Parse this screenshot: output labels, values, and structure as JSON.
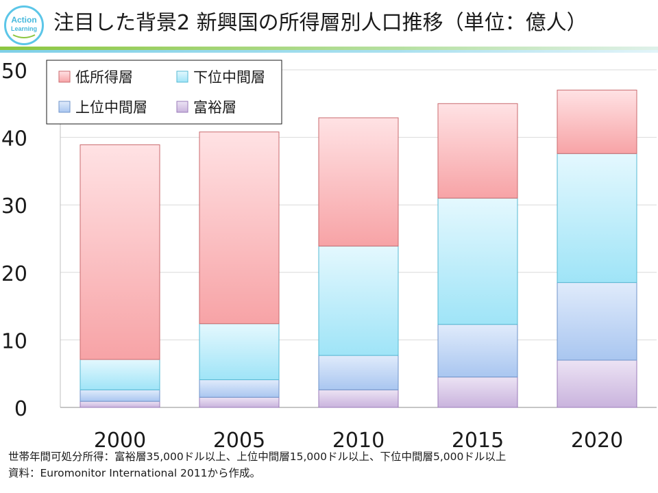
{
  "logo": {
    "text_line1": "Action",
    "text_line2": "Learning"
  },
  "title": "注目した背景2 新興国の所得層別人口推移（単位：億人）",
  "chart_data": {
    "type": "bar",
    "stacked": true,
    "categories": [
      "2000",
      "2005",
      "2010",
      "2015",
      "2020"
    ],
    "series": [
      {
        "name": "富裕層",
        "values": [
          0.9,
          1.5,
          2.6,
          4.5,
          7.0
        ]
      },
      {
        "name": "上位中間層",
        "values": [
          1.7,
          2.6,
          5.1,
          7.8,
          11.5
        ]
      },
      {
        "name": "下位中間層",
        "values": [
          4.5,
          8.3,
          16.2,
          18.7,
          19.1
        ]
      },
      {
        "name": "低所得層",
        "values": [
          31.8,
          28.4,
          19.0,
          14.0,
          9.4
        ]
      }
    ],
    "ylim": [
      0,
      50
    ],
    "yticks": [
      "0",
      "10",
      "20",
      "30",
      "40",
      "50"
    ],
    "grid": true,
    "legend_position": "top-left",
    "legend_order": [
      "低所得層",
      "下位中間層",
      "上位中間層",
      "富裕層"
    ],
    "colors": {
      "富裕層": {
        "light": "#ece3f4",
        "dark": "#c9b3dd",
        "border": "#9a7bb8"
      },
      "上位中間層": {
        "light": "#e0ebfb",
        "dark": "#a9c6f0",
        "border": "#6f93c9"
      },
      "下位中間層": {
        "light": "#e4f8fe",
        "dark": "#9fe4f7",
        "border": "#55b9d3"
      },
      "低所得層": {
        "light": "#ffe2e4",
        "dark": "#f7a3a6",
        "border": "#c96a6e"
      }
    }
  },
  "footnotes": {
    "line1": "世帯年間可処分所得：富裕層35,000ドル以上、上位中間層15,000ドル以上、下位中間層5,000ドル以上",
    "line2": "資料：Euromonitor International 2011から作成。"
  }
}
